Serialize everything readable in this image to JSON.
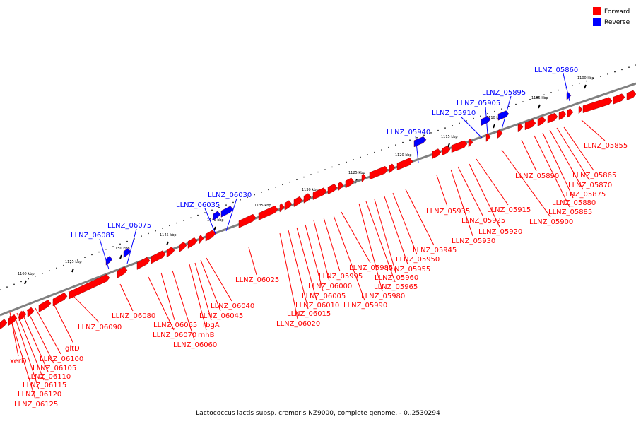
{
  "legend": {
    "forward_label": "Forward",
    "reverse_label": "Reverse",
    "forward_color": "#ff0000",
    "reverse_color": "#0000ff"
  },
  "caption": "Lactococcus lactis subsp. cremoris NZ9000, complete genome. - 0..2530294",
  "colors": {
    "backbone": "#808080",
    "tick": "#000000"
  },
  "ticks": [
    "1100 kbp",
    "1105 kbp",
    "1110 kbp",
    "1115 kbp",
    "1120 kbp",
    "1125 kbp",
    "1130 kbp",
    "1135 kbp",
    "1140 kbp",
    "1145 kbp",
    "1150 kbp",
    "1155 kbp",
    "1160 kbp"
  ],
  "reverse_genes": [
    "LLNZ_05860",
    "LLNZ_05895",
    "LLNZ_05905",
    "LLNZ_05910",
    "LLNZ_05940",
    "LLNZ_06030",
    "LLNZ_06035",
    "LLNZ_06075",
    "LLNZ_06085"
  ],
  "forward_genes": [
    "LLNZ_05855",
    "LLNZ_05865",
    "LLNZ_05870",
    "LLNZ_05875",
    "LLNZ_05880",
    "LLNZ_05885",
    "LLNZ_05890",
    "LLNZ_05900",
    "LLNZ_05915",
    "LLNZ_05920",
    "LLNZ_05925",
    "LLNZ_05930",
    "LLNZ_05935",
    "LLNZ_05945",
    "LLNZ_05950",
    "LLNZ_05955",
    "LLNZ_05960",
    "LLNZ_05965",
    "LLNZ_05980",
    "LLNZ_05985",
    "LLNZ_05990",
    "LLNZ_05995",
    "LLNZ_06000",
    "LLNZ_06005",
    "LLNZ_06010",
    "LLNZ_06015",
    "LLNZ_06020",
    "LLNZ_06025",
    "LLNZ_06040",
    "LLNZ_06045",
    "rbgA",
    "rnhB",
    "LLNZ_06060",
    "LLNZ_06065",
    "LLNZ_06070",
    "LLNZ_06080",
    "LLNZ_06090",
    "gltD",
    "LLNZ_06100",
    "xerD",
    "LLNZ_06105",
    "LLNZ_06110",
    "LLNZ_06115",
    "LLNZ_06120",
    "LLNZ_06125"
  ]
}
